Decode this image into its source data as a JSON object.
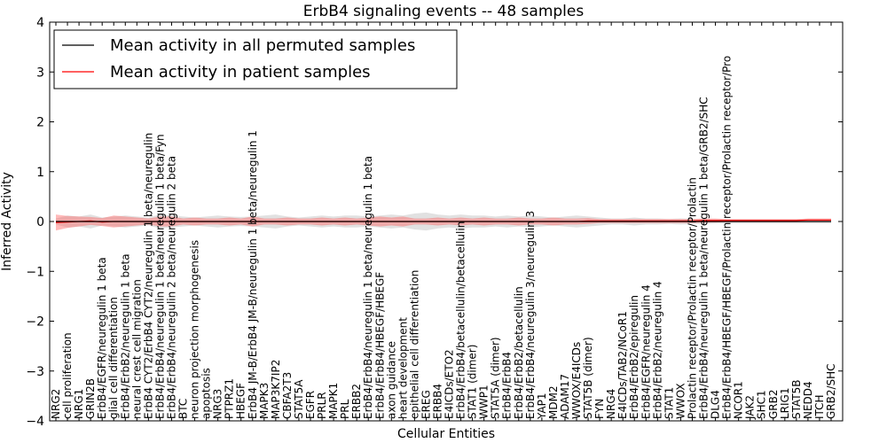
{
  "chart_data": {
    "type": "line",
    "title": "ErbB4 signaling events -- 48 samples",
    "xlabel": "Cellular Entities",
    "ylabel": "Inferred Activity",
    "ylim": [
      -4,
      4
    ],
    "yticks": [
      -4,
      -3,
      -2,
      -1,
      0,
      1,
      2,
      3,
      4
    ],
    "ytick_labels": [
      "−4",
      "−3",
      "−2",
      "−1",
      "0",
      "1",
      "2",
      "3",
      "4"
    ],
    "grid": false,
    "legend_position": "top-left",
    "categories": [
      "NRG2",
      "cell proliferation",
      "NRG1",
      "GRIN2B",
      "ErbB4/EGFR/neuregulin 1 beta",
      "glial cell differentiation",
      "ErbB4/ErbB2/neuregulin 1 beta",
      "neural crest cell migration",
      "ErbB4 CYT2/ErbB4 CYT2/neuregulin 1 beta/neuregulin",
      "ErbB4/ErbB4/neuregulin 1 beta/neuregulin 1 beta/Fyn",
      "ErbB4/ErbB4/neuregulin 2 beta/neuregulin 2 beta",
      "BTC",
      "neuron projection morphogenesis",
      "apoptosis",
      "NRG3",
      "PTPRZ1",
      "HBEGF",
      "ErbB4 JM-B/ErbB4 JM-B/neuregulin 1 beta/neuregulin 1",
      "MAPK3",
      "MAP3K7IP2",
      "CBFA2T3",
      "STAT5A",
      "EGFR",
      "PRLR",
      "MAPK1",
      "PRL",
      "ERBB2",
      "ErbB4/ErbB4/neuregulin 1 beta/neuregulin 1 beta",
      "ErbB4/ErbB4/HBEGF/HBEGF",
      "axon guidance",
      "heart development",
      "epithelial cell differentiation",
      "EREG",
      "ERBB4",
      "E4ICDs/ETO2",
      "ErbB4/ErbB4/betacellulin/betacellulin",
      "STAT1 (dimer)",
      "WWP1",
      "STAT5A (dimer)",
      "ErbB4/ErbB4",
      "ErbB4/ErbB2/betacellulin",
      "ErbB4/ErbB4/neuregulin 3/neuregulin 3",
      "YAP1",
      "MDM2",
      "ADAM17",
      "WWOX/E4ICDs",
      "STAT5B (dimer)",
      "FYN",
      "NRG4",
      "E4ICDs/TAB2/NCoR1",
      "ErbB4/ErbB2/epiregulin",
      "ErbB4/EGFR/neuregulin 4",
      "ErbB4/ErbB2/neuregulin 4",
      "STAT1",
      "WWOX",
      "Prolactin receptor/Prolactin receptor/Prolactin",
      "ErbB4/ErbB4/neuregulin 1 beta/neuregulin 1 beta/GRB2/SHC",
      "DLG4",
      "ErbB4/ErbB4/HBEGF/HBEGF/Prolactin receptor/Prolactin receptor/Pro",
      "NCOR1",
      "JAK2",
      "SHC1",
      "GRB2",
      "LRIG1",
      "STAT5B",
      "NEDD4",
      "ITCH",
      "GRB2/SHC"
    ],
    "series": [
      {
        "name": "Mean activity in all permuted samples",
        "color": "#000000",
        "values": [
          0.0,
          0.0,
          0.0,
          0.0,
          0.0,
          0.0,
          0.0,
          0.0,
          0.0,
          0.0,
          0.0,
          0.0,
          0.0,
          0.0,
          0.0,
          0.0,
          0.0,
          0.0,
          0.0,
          0.0,
          0.0,
          0.0,
          0.0,
          0.0,
          0.0,
          0.0,
          0.0,
          0.0,
          0.0,
          0.0,
          0.0,
          0.0,
          0.0,
          0.0,
          0.0,
          0.0,
          0.0,
          0.0,
          0.0,
          0.0,
          0.0,
          0.0,
          0.0,
          0.0,
          0.0,
          0.0,
          0.0,
          0.0,
          0.0,
          0.0,
          0.0,
          0.0,
          0.0,
          0.0,
          0.0,
          0.0,
          0.0,
          0.0,
          0.0,
          0.0,
          0.0,
          0.0,
          0.0,
          0.0,
          0.0,
          0.0,
          0.0,
          0.0
        ],
        "band": [
          0.06,
          0.12,
          0.1,
          0.14,
          0.08,
          0.1,
          0.12,
          0.1,
          0.08,
          0.14,
          0.12,
          0.1,
          0.08,
          0.1,
          0.12,
          0.1,
          0.09,
          0.1,
          0.12,
          0.14,
          0.1,
          0.08,
          0.1,
          0.12,
          0.1,
          0.12,
          0.12,
          0.1,
          0.12,
          0.14,
          0.12,
          0.16,
          0.18,
          0.14,
          0.12,
          0.14,
          0.12,
          0.12,
          0.1,
          0.12,
          0.1,
          0.12,
          0.1,
          0.08,
          0.1,
          0.12,
          0.1,
          0.08,
          0.06,
          0.06,
          0.08,
          0.06,
          0.06,
          0.05,
          0.06,
          0.05,
          0.05,
          0.04,
          0.04,
          0.04,
          0.04,
          0.04,
          0.04,
          0.04,
          0.04,
          0.04,
          0.04,
          0.04
        ]
      },
      {
        "name": "Mean activity in patient samples",
        "color": "#ff0000",
        "values": [
          -0.02,
          -0.01,
          0.0,
          0.01,
          -0.01,
          0.0,
          0.0,
          0.0,
          0.0,
          0.0,
          0.0,
          0.0,
          0.0,
          0.0,
          0.0,
          0.0,
          0.0,
          0.0,
          0.0,
          0.0,
          0.0,
          0.0,
          0.0,
          0.0,
          0.0,
          0.0,
          0.0,
          0.0,
          0.0,
          0.0,
          0.0,
          0.0,
          0.0,
          0.0,
          0.0,
          0.0,
          0.0,
          0.0,
          0.0,
          0.0,
          0.0,
          0.0,
          0.0,
          0.0,
          0.0,
          0.0,
          0.01,
          0.01,
          0.01,
          0.01,
          0.01,
          0.01,
          0.01,
          0.01,
          0.01,
          0.01,
          0.02,
          0.02,
          0.02,
          0.02,
          0.02,
          0.02,
          0.02,
          0.02,
          0.02,
          0.03,
          0.03,
          0.03
        ],
        "band": [
          0.16,
          0.12,
          0.1,
          0.08,
          0.08,
          0.12,
          0.1,
          0.08,
          0.06,
          0.1,
          0.1,
          0.06,
          0.08,
          0.06,
          0.06,
          0.08,
          0.06,
          0.1,
          0.06,
          0.06,
          0.08,
          0.06,
          0.06,
          0.08,
          0.06,
          0.08,
          0.06,
          0.08,
          0.1,
          0.08,
          0.1,
          0.06,
          0.06,
          0.08,
          0.06,
          0.08,
          0.06,
          0.08,
          0.06,
          0.06,
          0.08,
          0.06,
          0.06,
          0.08,
          0.06,
          0.06,
          0.06,
          0.04,
          0.04,
          0.04,
          0.04,
          0.04,
          0.04,
          0.04,
          0.04,
          0.04,
          0.04,
          0.04,
          0.03,
          0.03,
          0.03,
          0.03,
          0.03,
          0.03,
          0.03,
          0.03,
          0.03,
          0.03
        ]
      }
    ]
  }
}
